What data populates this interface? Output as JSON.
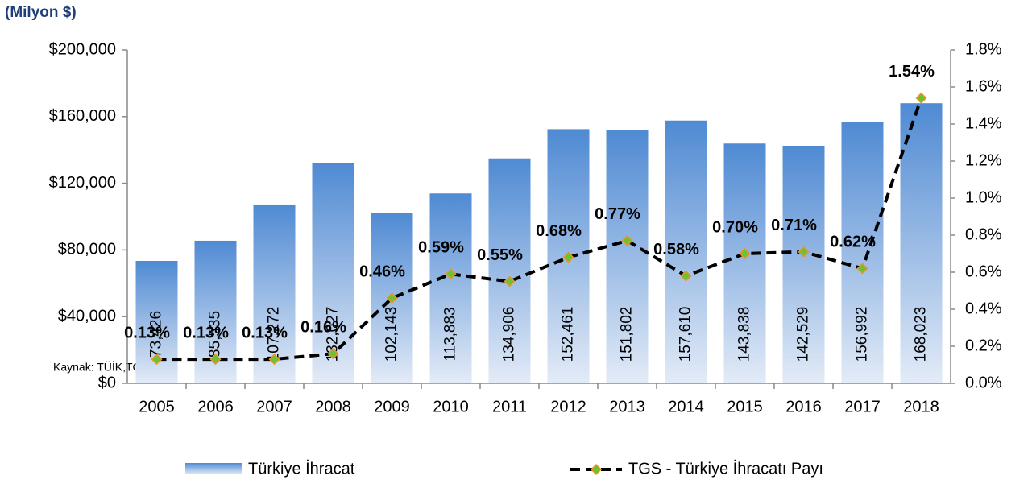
{
  "chart_data": {
    "type": "bar_line",
    "subtitle": "(Milyon $)",
    "source": "Kaynak: TÜİK,TGS",
    "categories": [
      "2005",
      "2006",
      "2007",
      "2008",
      "2009",
      "2010",
      "2011",
      "2012",
      "2013",
      "2014",
      "2015",
      "2016",
      "2017",
      "2018"
    ],
    "series": [
      {
        "name": "Türkiye İhracat",
        "type": "bar",
        "color": "#4f8ad3",
        "color_light": "#e3ebf7",
        "values": [
          73426,
          85535,
          107272,
          132027,
          102143,
          113883,
          134906,
          152461,
          151802,
          157610,
          143838,
          142529,
          156992,
          168023
        ],
        "value_labels": [
          "73,426",
          "85,535",
          "107,272",
          "132,027",
          "102,143",
          "113,883",
          "134,906",
          "152,461",
          "151,802",
          "157,610",
          "143,838",
          "142,529",
          "156,992",
          "168,023"
        ]
      },
      {
        "name": "TGS - Türkiye İhracatı Payı",
        "type": "line",
        "axis": "y2",
        "color": "#000000",
        "marker_color": "#6cc230",
        "marker_edge": "#e8952e",
        "values": [
          0.13,
          0.13,
          0.13,
          0.16,
          0.46,
          0.59,
          0.55,
          0.68,
          0.77,
          0.58,
          0.7,
          0.71,
          0.62,
          1.54
        ],
        "value_labels": [
          "0.13%",
          "0.13%",
          "0.13%",
          "0.16%",
          "0.46%",
          "0.59%",
          "0.55%",
          "0.68%",
          "0.77%",
          "0.58%",
          "0.70%",
          "0.71%",
          "0.62%",
          "1.54%"
        ]
      }
    ],
    "ylim": [
      0,
      200000
    ],
    "yticks": [
      {
        "value": 0,
        "label": "$0"
      },
      {
        "value": 40000,
        "label": "$40,000"
      },
      {
        "value": 80000,
        "label": "$80,000"
      },
      {
        "value": 120000,
        "label": "$120,000"
      },
      {
        "value": 160000,
        "label": "$160,000"
      },
      {
        "value": 200000,
        "label": "$200,000"
      }
    ],
    "y2lim": [
      0,
      1.8
    ],
    "y2ticks": [
      {
        "value": 0,
        "label": "0.0%"
      },
      {
        "value": 0.2,
        "label": "0.2%"
      },
      {
        "value": 0.4,
        "label": "0.4%"
      },
      {
        "value": 0.6,
        "label": "0.6%"
      },
      {
        "value": 0.8,
        "label": "0.8%"
      },
      {
        "value": 1.0,
        "label": "1.0%"
      },
      {
        "value": 1.2,
        "label": "1.2%"
      },
      {
        "value": 1.4,
        "label": "1.4%"
      },
      {
        "value": 1.6,
        "label": "1.6%"
      },
      {
        "value": 1.8,
        "label": "1.8%"
      }
    ],
    "legend": "bottom"
  }
}
